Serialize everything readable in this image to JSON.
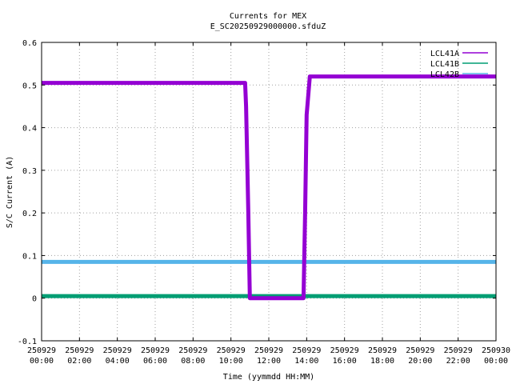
{
  "chart_data": {
    "type": "line",
    "title": "Currents for MEX",
    "subtitle": "E_SC20250929000000.sfduZ",
    "xlabel": "Time (yymmdd HH:MM)",
    "ylabel": "S/C Current (A)",
    "ylim": [
      -0.1,
      0.6
    ],
    "yticks": [
      "-0.1",
      "0",
      "0.1",
      "0.2",
      "0.3",
      "0.4",
      "0.5",
      "0.6"
    ],
    "xlim": [
      "250929 00:00",
      "250930 00:00"
    ],
    "xticks": [
      {
        "date": "250929",
        "time": "00:00"
      },
      {
        "date": "250929",
        "time": "02:00"
      },
      {
        "date": "250929",
        "time": "04:00"
      },
      {
        "date": "250929",
        "time": "06:00"
      },
      {
        "date": "250929",
        "time": "08:00"
      },
      {
        "date": "250929",
        "time": "10:00"
      },
      {
        "date": "250929",
        "time": "12:00"
      },
      {
        "date": "250929",
        "time": "14:00"
      },
      {
        "date": "250929",
        "time": "16:00"
      },
      {
        "date": "250929",
        "time": "18:00"
      },
      {
        "date": "250929",
        "time": "20:00"
      },
      {
        "date": "250929",
        "time": "22:00"
      },
      {
        "date": "250930",
        "time": "00:00"
      }
    ],
    "grid": true,
    "legend_position": "top-right",
    "series": [
      {
        "name": "LCL41A",
        "color": "#9400d3",
        "x": [
          "250929 00:00",
          "250929 10:45",
          "250929 10:48",
          "250929 10:55",
          "250929 11:00",
          "250929 13:50",
          "250929 13:55",
          "250929 14:00",
          "250929 14:10",
          "250930 00:00"
        ],
        "values": [
          0.505,
          0.505,
          0.45,
          0.2,
          0.0,
          0.0,
          0.2,
          0.43,
          0.52,
          0.52
        ]
      },
      {
        "name": "LCL41B",
        "color": "#009e73",
        "x": [
          "250929 00:00",
          "250930 00:00"
        ],
        "values": [
          0.005,
          0.005
        ]
      },
      {
        "name": "LCL42B",
        "color": "#56b4e9",
        "x": [
          "250929 00:00",
          "250930 00:00"
        ],
        "values": [
          0.085,
          0.085
        ]
      }
    ]
  }
}
